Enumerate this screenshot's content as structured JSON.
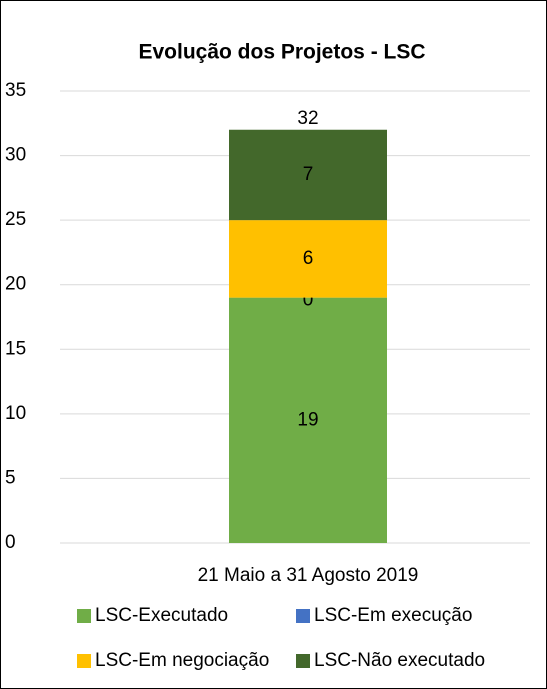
{
  "chart_data": {
    "type": "stacked_bar",
    "title": "Evolução dos Projetos - LSC",
    "categories": [
      "21 Maio a 31 Agosto 2019"
    ],
    "series": [
      {
        "name": "LSC-Executado",
        "color": "#70ad47",
        "values": [
          19
        ]
      },
      {
        "name": "LSC-Em execução",
        "color": "#4472c4",
        "values": [
          0
        ]
      },
      {
        "name": "LSC-Em negociação",
        "color": "#ffc000",
        "values": [
          6
        ]
      },
      {
        "name": "LSC-Não executado",
        "color": "#43682b",
        "values": [
          7
        ]
      }
    ],
    "totals": [
      32
    ],
    "ylim": [
      0,
      35
    ],
    "yticks": [
      0,
      5,
      10,
      15,
      20,
      25,
      30,
      35
    ],
    "grid": true,
    "legend": "bottom"
  }
}
